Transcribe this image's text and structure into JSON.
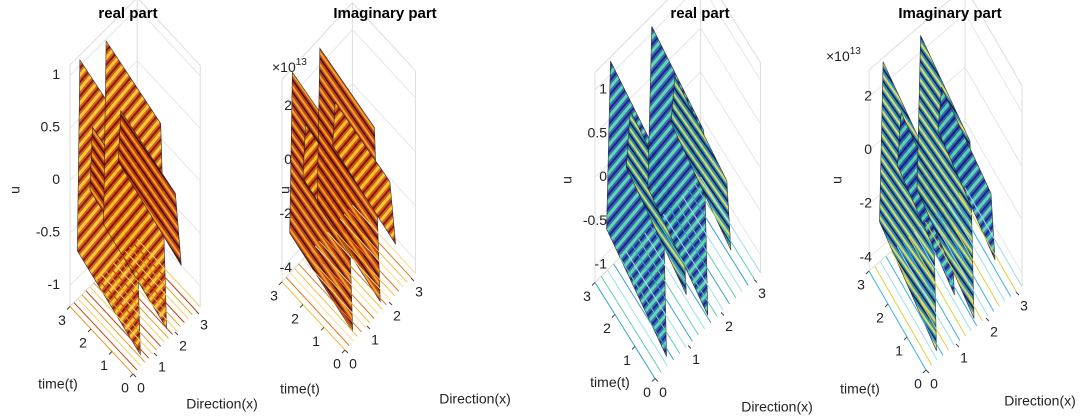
{
  "chart_data": [
    {
      "type": "surface",
      "title": "real part",
      "xlabel": "Direction(x)",
      "ylabel": "time(t)",
      "zlabel": "u",
      "xlim": [
        0,
        3.2
      ],
      "ylim": [
        0,
        3
      ],
      "zlim": [
        -1.2,
        1.1
      ],
      "xticks": [
        0,
        1,
        2,
        3
      ],
      "yticks": [
        0,
        1,
        2,
        3
      ],
      "zticks": [
        -1,
        -0.5,
        0,
        0.5,
        1
      ]
    },
    {
      "type": "surface",
      "title": "Imaginary part",
      "xlabel": "Direction(x)",
      "ylabel": "time(t)",
      "zlabel": "u",
      "z_scale": "×10",
      "z_scale_exponent": 13,
      "xlim": [
        0,
        3.2
      ],
      "ylim": [
        0,
        3
      ],
      "zlim": [
        -4.5,
        3
      ],
      "xticks": [
        0,
        1,
        2,
        3
      ],
      "yticks": [
        0,
        1,
        2,
        3
      ],
      "zticks": [
        -4,
        -2,
        0,
        2
      ]
    },
    {
      "type": "surface",
      "title": "real part",
      "xlabel": "Direction(x)",
      "ylabel": "time(t)",
      "zlabel": "u",
      "xlim": [
        0,
        3.2
      ],
      "ylim": [
        0,
        3
      ],
      "zlim": [
        -1.2,
        1.2
      ],
      "xticks": [
        0,
        1,
        2,
        3
      ],
      "yticks": [
        0,
        1,
        2,
        3
      ],
      "zticks": [
        -1,
        -0.5,
        0,
        0.5,
        1
      ]
    },
    {
      "type": "surface",
      "title": "Imaginary part",
      "xlabel": "Direction(x)",
      "ylabel": "time(t)",
      "zlabel": "u",
      "z_scale": "×10",
      "z_scale_exponent": 13,
      "xlim": [
        0,
        3.2
      ],
      "ylim": [
        0,
        3
      ],
      "zlim": [
        -4.5,
        3
      ],
      "xticks": [
        0,
        1,
        2,
        3
      ],
      "yticks": [
        0,
        1,
        2,
        3
      ],
      "zticks": [
        -4,
        -2,
        0,
        2
      ]
    }
  ]
}
